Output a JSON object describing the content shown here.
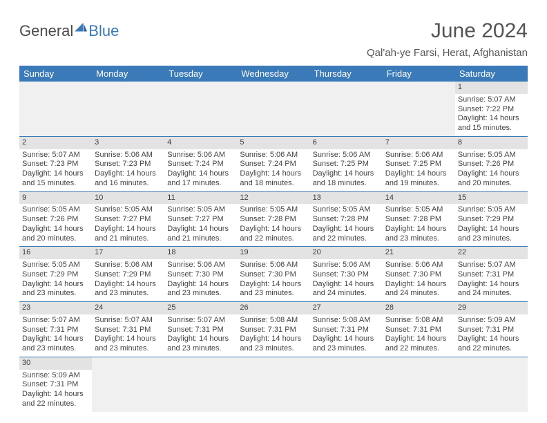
{
  "logo": {
    "word1": "General",
    "word2": "Blue",
    "sail_color": "#3a7ab8"
  },
  "title": "June 2024",
  "location": "Qal'ah-ye Farsi, Herat, Afghanistan",
  "colors": {
    "header_bg": "#3a7ab8",
    "header_text": "#ffffff",
    "daynum_bg": "#e3e3e3",
    "blank_bg": "#f0f0f0",
    "rule": "#3a7ab8",
    "body_text": "#444444"
  },
  "daysOfWeek": [
    "Sunday",
    "Monday",
    "Tuesday",
    "Wednesday",
    "Thursday",
    "Friday",
    "Saturday"
  ],
  "weeks": [
    [
      null,
      null,
      null,
      null,
      null,
      null,
      {
        "n": "1",
        "sunrise": "Sunrise: 5:07 AM",
        "sunset": "Sunset: 7:22 PM",
        "day1": "Daylight: 14 hours",
        "day2": "and 15 minutes."
      }
    ],
    [
      {
        "n": "2",
        "sunrise": "Sunrise: 5:07 AM",
        "sunset": "Sunset: 7:23 PM",
        "day1": "Daylight: 14 hours",
        "day2": "and 15 minutes."
      },
      {
        "n": "3",
        "sunrise": "Sunrise: 5:06 AM",
        "sunset": "Sunset: 7:23 PM",
        "day1": "Daylight: 14 hours",
        "day2": "and 16 minutes."
      },
      {
        "n": "4",
        "sunrise": "Sunrise: 5:06 AM",
        "sunset": "Sunset: 7:24 PM",
        "day1": "Daylight: 14 hours",
        "day2": "and 17 minutes."
      },
      {
        "n": "5",
        "sunrise": "Sunrise: 5:06 AM",
        "sunset": "Sunset: 7:24 PM",
        "day1": "Daylight: 14 hours",
        "day2": "and 18 minutes."
      },
      {
        "n": "6",
        "sunrise": "Sunrise: 5:06 AM",
        "sunset": "Sunset: 7:25 PM",
        "day1": "Daylight: 14 hours",
        "day2": "and 18 minutes."
      },
      {
        "n": "7",
        "sunrise": "Sunrise: 5:06 AM",
        "sunset": "Sunset: 7:25 PM",
        "day1": "Daylight: 14 hours",
        "day2": "and 19 minutes."
      },
      {
        "n": "8",
        "sunrise": "Sunrise: 5:05 AM",
        "sunset": "Sunset: 7:26 PM",
        "day1": "Daylight: 14 hours",
        "day2": "and 20 minutes."
      }
    ],
    [
      {
        "n": "9",
        "sunrise": "Sunrise: 5:05 AM",
        "sunset": "Sunset: 7:26 PM",
        "day1": "Daylight: 14 hours",
        "day2": "and 20 minutes."
      },
      {
        "n": "10",
        "sunrise": "Sunrise: 5:05 AM",
        "sunset": "Sunset: 7:27 PM",
        "day1": "Daylight: 14 hours",
        "day2": "and 21 minutes."
      },
      {
        "n": "11",
        "sunrise": "Sunrise: 5:05 AM",
        "sunset": "Sunset: 7:27 PM",
        "day1": "Daylight: 14 hours",
        "day2": "and 21 minutes."
      },
      {
        "n": "12",
        "sunrise": "Sunrise: 5:05 AM",
        "sunset": "Sunset: 7:28 PM",
        "day1": "Daylight: 14 hours",
        "day2": "and 22 minutes."
      },
      {
        "n": "13",
        "sunrise": "Sunrise: 5:05 AM",
        "sunset": "Sunset: 7:28 PM",
        "day1": "Daylight: 14 hours",
        "day2": "and 22 minutes."
      },
      {
        "n": "14",
        "sunrise": "Sunrise: 5:05 AM",
        "sunset": "Sunset: 7:28 PM",
        "day1": "Daylight: 14 hours",
        "day2": "and 23 minutes."
      },
      {
        "n": "15",
        "sunrise": "Sunrise: 5:05 AM",
        "sunset": "Sunset: 7:29 PM",
        "day1": "Daylight: 14 hours",
        "day2": "and 23 minutes."
      }
    ],
    [
      {
        "n": "16",
        "sunrise": "Sunrise: 5:05 AM",
        "sunset": "Sunset: 7:29 PM",
        "day1": "Daylight: 14 hours",
        "day2": "and 23 minutes."
      },
      {
        "n": "17",
        "sunrise": "Sunrise: 5:06 AM",
        "sunset": "Sunset: 7:29 PM",
        "day1": "Daylight: 14 hours",
        "day2": "and 23 minutes."
      },
      {
        "n": "18",
        "sunrise": "Sunrise: 5:06 AM",
        "sunset": "Sunset: 7:30 PM",
        "day1": "Daylight: 14 hours",
        "day2": "and 23 minutes."
      },
      {
        "n": "19",
        "sunrise": "Sunrise: 5:06 AM",
        "sunset": "Sunset: 7:30 PM",
        "day1": "Daylight: 14 hours",
        "day2": "and 23 minutes."
      },
      {
        "n": "20",
        "sunrise": "Sunrise: 5:06 AM",
        "sunset": "Sunset: 7:30 PM",
        "day1": "Daylight: 14 hours",
        "day2": "and 24 minutes."
      },
      {
        "n": "21",
        "sunrise": "Sunrise: 5:06 AM",
        "sunset": "Sunset: 7:30 PM",
        "day1": "Daylight: 14 hours",
        "day2": "and 24 minutes."
      },
      {
        "n": "22",
        "sunrise": "Sunrise: 5:07 AM",
        "sunset": "Sunset: 7:31 PM",
        "day1": "Daylight: 14 hours",
        "day2": "and 24 minutes."
      }
    ],
    [
      {
        "n": "23",
        "sunrise": "Sunrise: 5:07 AM",
        "sunset": "Sunset: 7:31 PM",
        "day1": "Daylight: 14 hours",
        "day2": "and 23 minutes."
      },
      {
        "n": "24",
        "sunrise": "Sunrise: 5:07 AM",
        "sunset": "Sunset: 7:31 PM",
        "day1": "Daylight: 14 hours",
        "day2": "and 23 minutes."
      },
      {
        "n": "25",
        "sunrise": "Sunrise: 5:07 AM",
        "sunset": "Sunset: 7:31 PM",
        "day1": "Daylight: 14 hours",
        "day2": "and 23 minutes."
      },
      {
        "n": "26",
        "sunrise": "Sunrise: 5:08 AM",
        "sunset": "Sunset: 7:31 PM",
        "day1": "Daylight: 14 hours",
        "day2": "and 23 minutes."
      },
      {
        "n": "27",
        "sunrise": "Sunrise: 5:08 AM",
        "sunset": "Sunset: 7:31 PM",
        "day1": "Daylight: 14 hours",
        "day2": "and 23 minutes."
      },
      {
        "n": "28",
        "sunrise": "Sunrise: 5:08 AM",
        "sunset": "Sunset: 7:31 PM",
        "day1": "Daylight: 14 hours",
        "day2": "and 22 minutes."
      },
      {
        "n": "29",
        "sunrise": "Sunrise: 5:09 AM",
        "sunset": "Sunset: 7:31 PM",
        "day1": "Daylight: 14 hours",
        "day2": "and 22 minutes."
      }
    ],
    [
      {
        "n": "30",
        "sunrise": "Sunrise: 5:09 AM",
        "sunset": "Sunset: 7:31 PM",
        "day1": "Daylight: 14 hours",
        "day2": "and 22 minutes."
      },
      null,
      null,
      null,
      null,
      null,
      null
    ]
  ]
}
